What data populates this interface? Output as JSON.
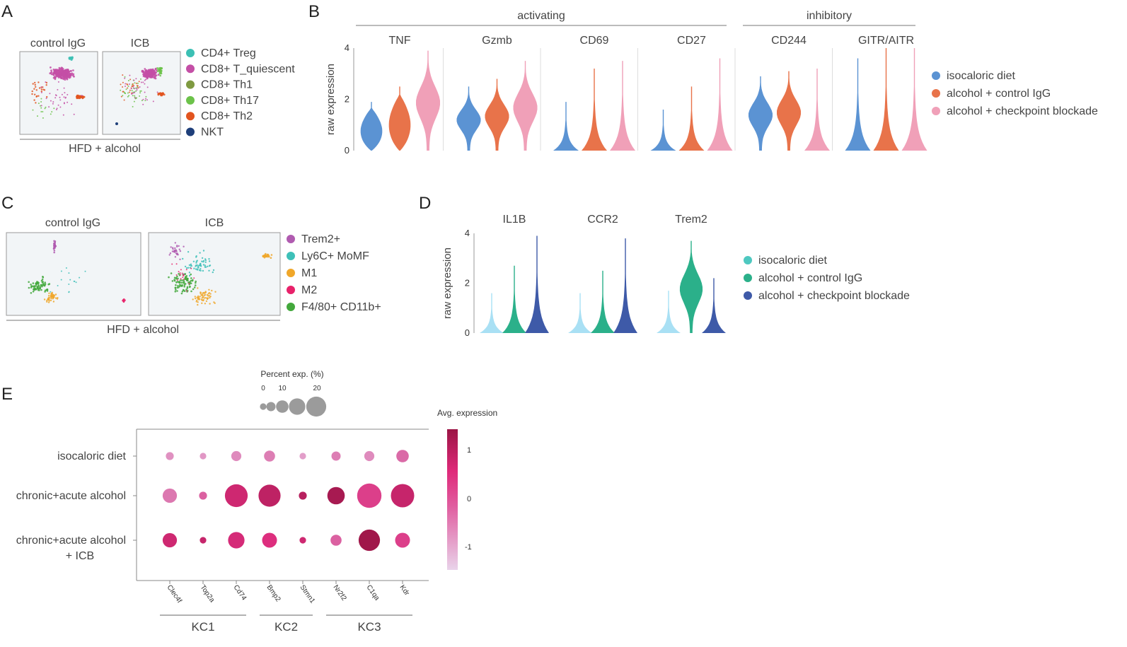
{
  "panels": {
    "A": {
      "letter": "A",
      "titles": [
        "control IgG",
        "ICB"
      ],
      "bracket_label": "HFD + alcohol",
      "legend": [
        {
          "label": "CD4+ Treg",
          "color": "#3cc0b4"
        },
        {
          "label": "CD8+ T_quiescent",
          "color": "#c44fa6"
        },
        {
          "label": "CD8+ Th1",
          "color": "#7f9a41"
        },
        {
          "label": "CD8+ Th17",
          "color": "#6cc24a"
        },
        {
          "label": "CD8+ Th2",
          "color": "#e2541f"
        },
        {
          "label": "NKT",
          "color": "#1f3f7a"
        }
      ]
    },
    "B": {
      "letter": "B",
      "group_labels": [
        "activating",
        "inhibitory"
      ],
      "legend": [
        {
          "label": "isocaloric diet",
          "color": "#5b93d3"
        },
        {
          "label": "alcohol + control IgG",
          "color": "#e8734a"
        },
        {
          "label": "alcohol + checkpoint blockade",
          "color": "#f0a0b8"
        }
      ]
    },
    "C": {
      "letter": "C",
      "titles": [
        "control IgG",
        "ICB"
      ],
      "bracket_label": "HFD + alcohol",
      "legend": [
        {
          "label": "Trem2+",
          "color": "#b05bb0"
        },
        {
          "label": "Ly6C+ MoMF",
          "color": "#3ec0b8"
        },
        {
          "label": "M1",
          "color": "#f0a72a"
        },
        {
          "label": "M2",
          "color": "#e8226a"
        },
        {
          "label": "F4/80+ CD11b+",
          "color": "#43a83c"
        }
      ]
    },
    "D": {
      "letter": "D",
      "legend": [
        {
          "label": "isocaloric diet",
          "color": "#4ec8c0"
        },
        {
          "label": "alcohol + control IgG",
          "color": "#2bb08a"
        },
        {
          "label": "alcohol + checkpoint blockade",
          "color": "#3e5aa8"
        }
      ]
    },
    "E": {
      "letter": "E",
      "size_legend_title": "Percent exp. (%)",
      "size_legend_ticks": [
        "0",
        "10",
        "20"
      ],
      "color_legend_title": "Avg. expression",
      "color_ticks": [
        "1",
        "0",
        "-1"
      ]
    }
  },
  "chart_data": [
    {
      "id": "B",
      "type": "violin",
      "ylabel": "raw expression",
      "yticks": [
        "0",
        "2",
        "4"
      ],
      "ylim": [
        0,
        4
      ],
      "groups": [
        "isocaloric diet",
        "alcohol + control IgG",
        "alcohol + checkpoint blockade"
      ],
      "genes": [
        {
          "name": "TNF",
          "category": "activating",
          "max": [
            1.9,
            2.5,
            3.9
          ]
        },
        {
          "name": "Gzmb",
          "category": "activating",
          "max": [
            2.5,
            2.8,
            3.5
          ]
        },
        {
          "name": "CD69",
          "category": "activating",
          "max": [
            1.9,
            3.2,
            3.5
          ]
        },
        {
          "name": "CD27",
          "category": "activating",
          "max": [
            1.6,
            2.5,
            3.6
          ]
        },
        {
          "name": "CD244",
          "category": "inhibitory",
          "max": [
            2.9,
            3.1,
            3.2
          ]
        },
        {
          "name": "GITR/AITR",
          "category": "inhibitory",
          "max": [
            3.6,
            4.0,
            4.0
          ]
        }
      ]
    },
    {
      "id": "D",
      "type": "violin",
      "ylabel": "raw expression",
      "yticks": [
        "0",
        "2",
        "4"
      ],
      "ylim": [
        0,
        4
      ],
      "groups": [
        "isocaloric diet",
        "alcohol + control IgG",
        "alcohol + checkpoint blockade"
      ],
      "genes": [
        {
          "name": "IL1B",
          "max": [
            1.6,
            2.7,
            3.9
          ]
        },
        {
          "name": "CCR2",
          "max": [
            1.6,
            2.5,
            3.8
          ]
        },
        {
          "name": "Trem2",
          "max": [
            1.7,
            3.7,
            2.2
          ]
        }
      ]
    },
    {
      "id": "E",
      "type": "dotplot",
      "rows": [
        "isocaloric diet",
        "chronic+acute alcohol",
        "chronic+acute alcohol + ICB"
      ],
      "row_lines": [
        [
          "isocaloric diet"
        ],
        [
          "chronic+acute alcohol"
        ],
        [
          "chronic+acute alcohol",
          "+ ICB"
        ]
      ],
      "genes": [
        "Clec4f",
        "Top2a",
        "Cd74",
        "Bmp2",
        "Stmn1",
        "Nr2f2",
        "C1qa",
        "Kdr"
      ],
      "gene_groups": [
        {
          "label": "KC1",
          "genes": [
            "Clec4f",
            "Top2a",
            "Cd74"
          ]
        },
        {
          "label": "KC2",
          "genes": [
            "Bmp2",
            "Stmn1"
          ]
        },
        {
          "label": "KC3",
          "genes": [
            "Nr2f2",
            "C1qa",
            "Kdr"
          ]
        }
      ],
      "percent_exp": [
        [
          2,
          1,
          4,
          5,
          1,
          3,
          4,
          7
        ],
        [
          10,
          2,
          30,
          28,
          2,
          16,
          35,
          32
        ],
        [
          10,
          1,
          14,
          11,
          1,
          5,
          26,
          11
        ]
      ],
      "avg_exp": [
        [
          -0.7,
          -0.8,
          -0.6,
          -0.4,
          -0.9,
          -0.4,
          -0.6,
          -0.1
        ],
        [
          -0.3,
          0.0,
          0.8,
          1.0,
          1.1,
          1.3,
          0.4,
          0.9
        ],
        [
          0.8,
          0.9,
          0.7,
          0.6,
          0.8,
          0.0,
          1.4,
          0.4
        ]
      ],
      "size_range": [
        0,
        20
      ],
      "color_range": [
        -1.5,
        1.5
      ]
    }
  ]
}
